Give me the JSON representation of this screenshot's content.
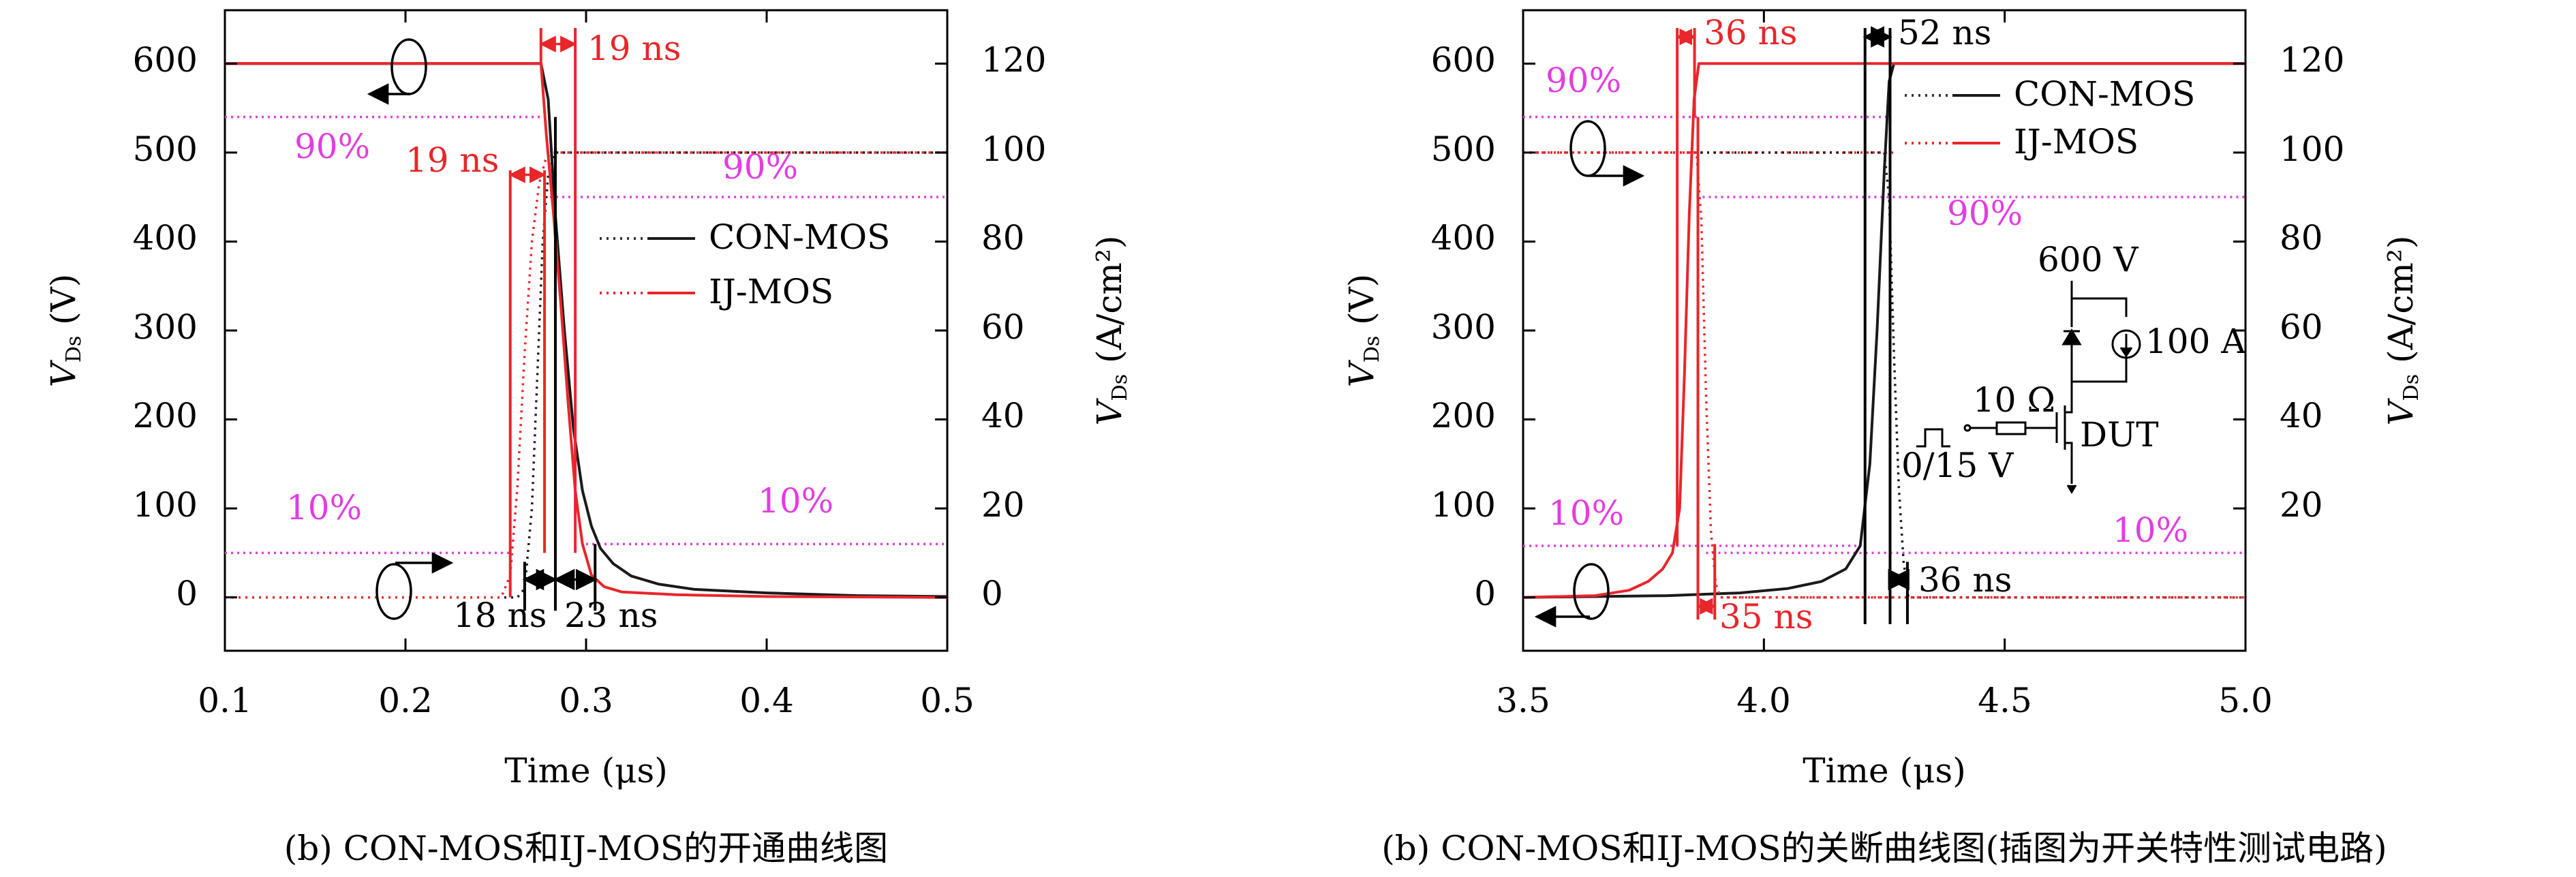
{
  "figure": {
    "caption_left": "(b) CON-MOS和IJ-MOS的开通曲线图",
    "caption_right": "(b) CON-MOS和IJ-MOS的关断曲线图(插图为开关特性测试电路)"
  },
  "colors": {
    "con": "#1a1a1a",
    "ij": "#e8262b",
    "threshold": "#e23de2",
    "black": "#000000"
  },
  "chart_data": [
    {
      "type": "line",
      "title": "",
      "xlabel": "Time (μs)",
      "ylabel_left": {
        "main": "V",
        "sub": "Ds",
        "unit": " (V)"
      },
      "ylabel_right": {
        "main": "V",
        "sub": "Ds",
        "unit": " (A/cm²)"
      },
      "xlim": [
        0.1,
        0.5
      ],
      "ylim_left": [
        -60,
        660
      ],
      "ylim_right": [
        -12,
        132
      ],
      "xticks": [
        0.1,
        0.2,
        0.3,
        0.4,
        0.5
      ],
      "xtick_labels": [
        "0.1",
        "0.2",
        "0.3",
        "0.4",
        "0.5"
      ],
      "yticks_left": [
        0,
        100,
        200,
        300,
        400,
        500,
        600
      ],
      "yticks_left_labels": [
        "0",
        "100",
        "200",
        "300",
        "400",
        "500",
        "600"
      ],
      "yticks_right": [
        0,
        20,
        40,
        60,
        80,
        100,
        120
      ],
      "yticks_right_labels": [
        "0",
        "20",
        "40",
        "60",
        "80",
        "100",
        "120"
      ],
      "legend": {
        "placement": "right-middle",
        "entries": [
          "CON-MOS",
          "IJ-MOS"
        ]
      },
      "series": [
        {
          "name": "CON-MOS",
          "kind": "voltage",
          "axis": "left",
          "style": "solid",
          "points": [
            [
              0.1,
              600
            ],
            [
              0.275,
              600
            ],
            [
              0.279,
              560
            ],
            [
              0.283,
              430
            ],
            [
              0.288,
              300
            ],
            [
              0.293,
              190
            ],
            [
              0.298,
              120
            ],
            [
              0.303,
              80
            ],
            [
              0.308,
              55
            ],
            [
              0.315,
              38
            ],
            [
              0.325,
              24
            ],
            [
              0.34,
              15
            ],
            [
              0.36,
              9
            ],
            [
              0.4,
              5
            ],
            [
              0.45,
              2
            ],
            [
              0.5,
              1
            ]
          ]
        },
        {
          "name": "CON-MOS",
          "kind": "current",
          "axis": "right",
          "style": "dotted",
          "points": [
            [
              0.1,
              0
            ],
            [
              0.262,
              0
            ],
            [
              0.266,
              2
            ],
            [
              0.27,
              20
            ],
            [
              0.273,
              50
            ],
            [
              0.276,
              80
            ],
            [
              0.279,
              95
            ],
            [
              0.283,
              100
            ],
            [
              0.5,
              100
            ]
          ]
        },
        {
          "name": "IJ-MOS",
          "kind": "voltage",
          "axis": "left",
          "style": "solid",
          "points": [
            [
              0.1,
              600
            ],
            [
              0.275,
              600
            ],
            [
              0.278,
              520
            ],
            [
              0.282,
              430
            ],
            [
              0.286,
              330
            ],
            [
              0.29,
              220
            ],
            [
              0.294,
              120
            ],
            [
              0.298,
              60
            ],
            [
              0.303,
              25
            ],
            [
              0.31,
              12
            ],
            [
              0.32,
              6
            ],
            [
              0.35,
              3
            ],
            [
              0.4,
              1
            ],
            [
              0.5,
              0
            ]
          ]
        },
        {
          "name": "IJ-MOS",
          "kind": "current",
          "axis": "right",
          "style": "dotted",
          "points": [
            [
              0.1,
              0
            ],
            [
              0.253,
              0
            ],
            [
              0.258,
              5
            ],
            [
              0.262,
              25
            ],
            [
              0.266,
              55
            ],
            [
              0.27,
              80
            ],
            [
              0.274,
              93
            ],
            [
              0.278,
              99
            ],
            [
              0.282,
              100
            ],
            [
              0.5,
              100
            ]
          ]
        }
      ],
      "threshold_lines": [
        {
          "label": "",
          "axis": "left",
          "value": 540,
          "x_from": 0.1,
          "x_to": 0.275
        },
        {
          "label": "90%",
          "axis": "right",
          "value": 90,
          "x_from": 0.28,
          "x_to": 0.5
        },
        {
          "label": "10%",
          "axis": "left",
          "value": 50,
          "x_from": 0.1,
          "x_to": 0.258
        },
        {
          "label": "10%",
          "axis": "right",
          "value": 12,
          "x_from": 0.3,
          "x_to": 0.5
        }
      ],
      "red_ref_lines": [
        {
          "axis": "right",
          "value": 100,
          "x_from": 0.283,
          "x_to": 0.5
        }
      ],
      "annotations": [
        {
          "text": "19 ns",
          "color": "red",
          "x": 0.302,
          "y": 610
        },
        {
          "text": "19 ns",
          "color": "red",
          "x": 0.265,
          "y": 475
        },
        {
          "text": "90%",
          "color": "magenta",
          "x": 0.128,
          "y": 500
        },
        {
          "text": "90%",
          "color": "magenta",
          "x": 0.362,
          "y": 478
        },
        {
          "text": "10%",
          "color": "magenta",
          "x": 0.133,
          "y": 78
        },
        {
          "text": "10%",
          "color": "magenta",
          "x": 0.38,
          "y": 85
        },
        {
          "text": "18 ns",
          "color": "black",
          "x": 0.246,
          "y": -40
        },
        {
          "text": "23 ns",
          "color": "black",
          "x": 0.297,
          "y": -40
        }
      ]
    },
    {
      "type": "line",
      "title": "",
      "xlabel": "Time (μs)",
      "ylabel_left": {
        "main": "V",
        "sub": "Ds",
        "unit": " (V)"
      },
      "ylabel_right": {
        "main": "V",
        "sub": "Ds",
        "unit": " (A/cm²)"
      },
      "xlim": [
        3.5,
        5.0
      ],
      "ylim_left": [
        -60,
        660
      ],
      "ylim_right": [
        -12,
        132
      ],
      "xticks": [
        3.5,
        4.0,
        4.5,
        5.0
      ],
      "xtick_labels": [
        "3.5",
        "4.0",
        "4.5",
        "5.0"
      ],
      "yticks_left": [
        0,
        100,
        200,
        300,
        400,
        500,
        600
      ],
      "yticks_left_labels": [
        "0",
        "100",
        "200",
        "300",
        "400",
        "500",
        "600"
      ],
      "yticks_right": [
        20,
        40,
        60,
        80,
        100,
        120
      ],
      "yticks_right_labels": [
        "20",
        "40",
        "60",
        "80",
        "100",
        "120"
      ],
      "legend": {
        "placement": "top-right",
        "entries": [
          "CON-MOS",
          "IJ-MOS"
        ]
      },
      "series": [
        {
          "name": "CON-MOS",
          "kind": "voltage",
          "axis": "left",
          "style": "solid",
          "points": [
            [
              3.5,
              0
            ],
            [
              3.8,
              2
            ],
            [
              3.95,
              5
            ],
            [
              4.05,
              10
            ],
            [
              4.12,
              18
            ],
            [
              4.17,
              32
            ],
            [
              4.2,
              58
            ],
            [
              4.22,
              150
            ],
            [
              4.235,
              300
            ],
            [
              4.25,
              480
            ],
            [
              4.26,
              580
            ],
            [
              4.27,
              600
            ],
            [
              5.0,
              600
            ]
          ]
        },
        {
          "name": "CON-MOS",
          "kind": "current",
          "axis": "right",
          "style": "dotted",
          "points": [
            [
              3.5,
              100
            ],
            [
              4.25,
              100
            ],
            [
              4.26,
              90
            ],
            [
              4.27,
              55
            ],
            [
              4.28,
              25
            ],
            [
              4.29,
              8
            ],
            [
              4.3,
              0
            ],
            [
              5.0,
              0
            ]
          ]
        },
        {
          "name": "IJ-MOS",
          "kind": "voltage",
          "axis": "left",
          "style": "solid",
          "points": [
            [
              3.5,
              0
            ],
            [
              3.65,
              2
            ],
            [
              3.72,
              8
            ],
            [
              3.76,
              18
            ],
            [
              3.79,
              32
            ],
            [
              3.81,
              50
            ],
            [
              3.825,
              100
            ],
            [
              3.835,
              250
            ],
            [
              3.845,
              430
            ],
            [
              3.855,
              560
            ],
            [
              3.865,
              600
            ],
            [
              5.0,
              600
            ]
          ]
        },
        {
          "name": "IJ-MOS",
          "kind": "current",
          "axis": "right",
          "style": "dotted",
          "points": [
            [
              3.5,
              100
            ],
            [
              3.86,
              100
            ],
            [
              3.87,
              85
            ],
            [
              3.88,
              45
            ],
            [
              3.89,
              15
            ],
            [
              3.9,
              3
            ],
            [
              3.91,
              0
            ],
            [
              5.0,
              0
            ]
          ]
        }
      ],
      "threshold_lines": [
        {
          "label": "90%",
          "axis": "left",
          "value": 540,
          "x_from": 3.5,
          "x_to": 4.26
        },
        {
          "label": "90%",
          "axis": "right",
          "value": 90,
          "x_from": 3.86,
          "x_to": 5.0
        },
        {
          "label": "10%",
          "axis": "left",
          "value": 58,
          "x_from": 3.5,
          "x_to": 4.2
        },
        {
          "label": "10%",
          "axis": "right",
          "value": 10,
          "x_from": 3.88,
          "x_to": 5.0
        }
      ],
      "red_ref_lines": [
        {
          "axis": "left",
          "value": 500,
          "x_from": 3.5,
          "x_to": 4.27
        },
        {
          "axis": "right",
          "value": 0,
          "x_from": 3.91,
          "x_to": 5.0
        }
      ],
      "annotations": [
        {
          "text": "36 ns",
          "color": "red",
          "x": 3.88,
          "y": 625
        },
        {
          "text": "52 ns",
          "color": "black",
          "x": 4.27,
          "y": 625
        },
        {
          "text": "90%",
          "color": "magenta",
          "x": 3.55,
          "y": 555
        },
        {
          "text": "90%",
          "color": "magenta",
          "x": 4.39,
          "y": 405
        },
        {
          "text": "10%",
          "color": "magenta",
          "x": 3.56,
          "y": 85
        },
        {
          "text": "10%",
          "color": "magenta",
          "x": 4.72,
          "y": 65
        },
        {
          "text": "36 ns",
          "color": "black",
          "x": 4.3,
          "y": 15
        },
        {
          "text": "35 ns",
          "color": "red",
          "x": 3.9,
          "y": -22
        }
      ],
      "inset": {
        "labels": [
          "600 V",
          "100 A",
          "10 Ω",
          "DUT",
          "0/15 V"
        ]
      }
    }
  ]
}
